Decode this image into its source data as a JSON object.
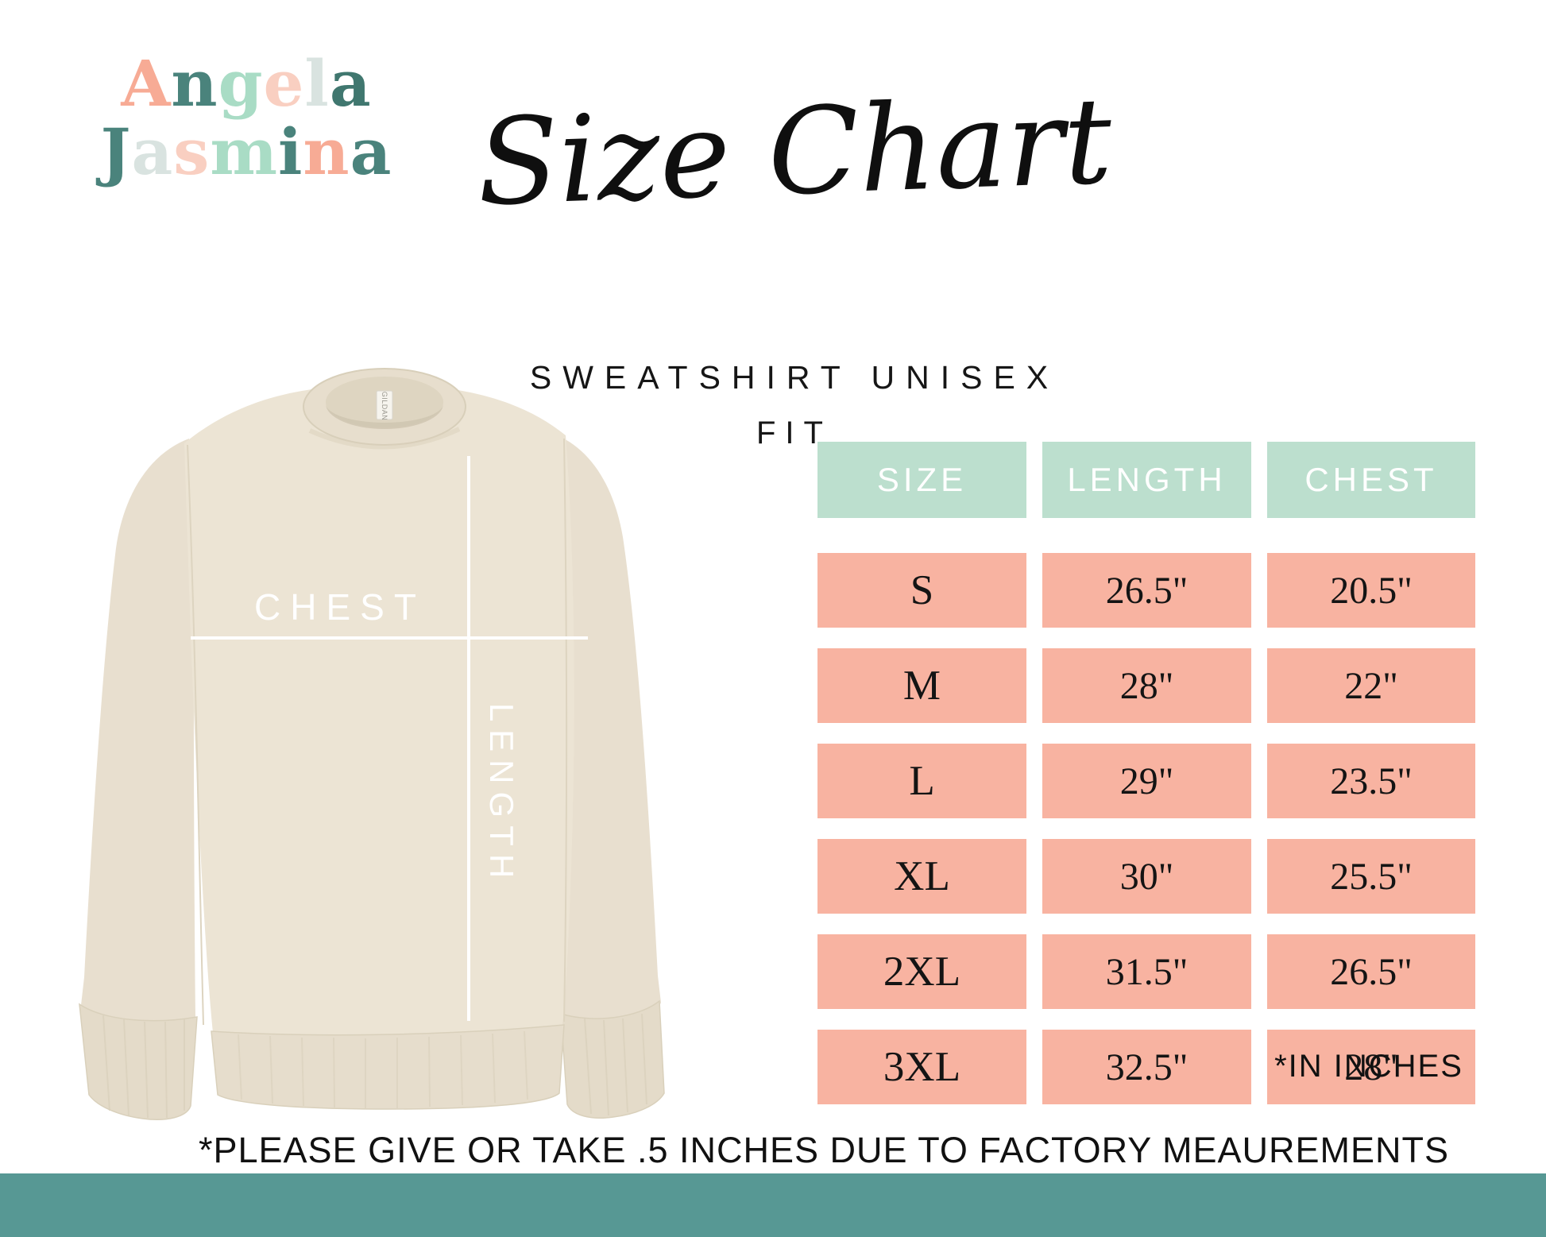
{
  "brand": {
    "name": "Angela Jasmina",
    "lines": [
      [
        {
          "ch": "A",
          "color": "#f7ab95"
        },
        {
          "ch": "n",
          "color": "#4a837c"
        },
        {
          "ch": "g",
          "color": "#a9dcc5"
        },
        {
          "ch": "e",
          "color": "#f9cfc1"
        },
        {
          "ch": "l",
          "color": "#d9e3e0"
        },
        {
          "ch": "a",
          "color": "#40776f"
        }
      ],
      [
        {
          "ch": "J",
          "color": "#4a837c"
        },
        {
          "ch": "a",
          "color": "#d9e3e0"
        },
        {
          "ch": "s",
          "color": "#f9cfc1"
        },
        {
          "ch": "m",
          "color": "#a9dcc5"
        },
        {
          "ch": "i",
          "color": "#4a837c"
        },
        {
          "ch": "n",
          "color": "#f7ab95"
        },
        {
          "ch": "a",
          "color": "#4a837c"
        }
      ]
    ]
  },
  "title": "Size Chart",
  "subtitle_line1": "SWEATSHIRT UNISEX",
  "subtitle_line2": "FIT",
  "garment": {
    "chest_label": "CHEST",
    "length_label": "LENGTH",
    "neck_tag": "GILDAN",
    "fabric_color": "#ece4d4"
  },
  "chart_data": {
    "type": "table",
    "title": "Size Chart",
    "subtitle": "SWEATSHIRT UNISEX FIT",
    "columns": [
      "SIZE",
      "LENGTH",
      "CHEST"
    ],
    "rows": [
      [
        "S",
        "26.5\"",
        "20.5\""
      ],
      [
        "M",
        "28\"",
        "22\""
      ],
      [
        "L",
        "29\"",
        "23.5\""
      ],
      [
        "XL",
        "30\"",
        "25.5\""
      ],
      [
        "2XL",
        "31.5\"",
        "26.5\""
      ],
      [
        "3XL",
        "32.5\"",
        "28\""
      ]
    ],
    "units_note": "*IN INCHES",
    "footnote": "*PLEASE GIVE OR TAKE .5 INCHES DUE TO FACTORY MEAUREMENTS"
  },
  "notes": {
    "units": "*IN INCHES",
    "tolerance": "*PLEASE GIVE OR TAKE .5 INCHES DUE TO FACTORY MEAUREMENTS"
  },
  "colors": {
    "header_bg": "#bcdfce",
    "header_text": "#ffffff",
    "row_bg": "#f8b3a1",
    "row_text": "#141414",
    "footer_bar": "#579894",
    "measure_line": "#ffffff"
  }
}
